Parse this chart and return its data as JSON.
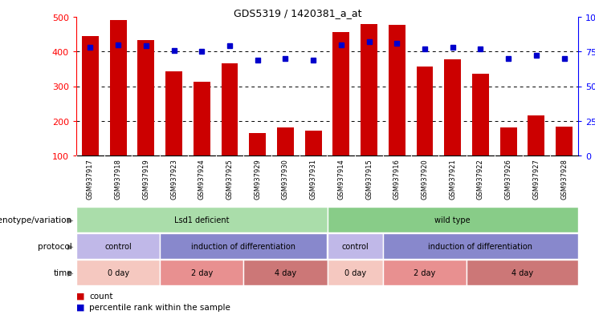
{
  "title": "GDS5319 / 1420381_a_at",
  "samples": [
    "GSM937917",
    "GSM937918",
    "GSM937919",
    "GSM937923",
    "GSM937924",
    "GSM937925",
    "GSM937929",
    "GSM937930",
    "GSM937931",
    "GSM937914",
    "GSM937915",
    "GSM937916",
    "GSM937920",
    "GSM937921",
    "GSM937922",
    "GSM937926",
    "GSM937927",
    "GSM937928"
  ],
  "counts": [
    445,
    490,
    432,
    342,
    313,
    367,
    165,
    182,
    172,
    455,
    480,
    478,
    357,
    378,
    335,
    180,
    215,
    183
  ],
  "percentiles": [
    78,
    80,
    79,
    76,
    75,
    79,
    69,
    70,
    69,
    80,
    82,
    81,
    77,
    78,
    77,
    70,
    72,
    70
  ],
  "ylim_left": [
    100,
    500
  ],
  "ylim_right": [
    0,
    100
  ],
  "yticks_left": [
    100,
    200,
    300,
    400,
    500
  ],
  "ytick_labels_left": [
    "100",
    "200",
    "300",
    "400",
    "500"
  ],
  "yticks_right": [
    0,
    25,
    50,
    75,
    100
  ],
  "ytick_labels_right": [
    "0",
    "25",
    "50",
    "75",
    "100%"
  ],
  "bar_color": "#cc0000",
  "dot_color": "#0000cc",
  "xtick_bg": "#d0d0d0",
  "genotype_groups": [
    {
      "label": "Lsd1 deficient",
      "start": 0,
      "end": 9,
      "color": "#aaddaa"
    },
    {
      "label": "wild type",
      "start": 9,
      "end": 18,
      "color": "#88cc88"
    }
  ],
  "protocol_groups": [
    {
      "label": "control",
      "start": 0,
      "end": 3,
      "color": "#c0b8e8"
    },
    {
      "label": "induction of differentiation",
      "start": 3,
      "end": 9,
      "color": "#8888cc"
    },
    {
      "label": "control",
      "start": 9,
      "end": 11,
      "color": "#c0b8e8"
    },
    {
      "label": "induction of differentiation",
      "start": 11,
      "end": 18,
      "color": "#8888cc"
    }
  ],
  "time_groups": [
    {
      "label": "0 day",
      "start": 0,
      "end": 3,
      "color": "#f5c8c0"
    },
    {
      "label": "2 day",
      "start": 3,
      "end": 6,
      "color": "#e89090"
    },
    {
      "label": "4 day",
      "start": 6,
      "end": 9,
      "color": "#cc7777"
    },
    {
      "label": "0 day",
      "start": 9,
      "end": 11,
      "color": "#f5c8c0"
    },
    {
      "label": "2 day",
      "start": 11,
      "end": 14,
      "color": "#e89090"
    },
    {
      "label": "4 day",
      "start": 14,
      "end": 18,
      "color": "#cc7777"
    }
  ],
  "row_labels": [
    "genotype/variation",
    "protocol",
    "time"
  ],
  "legend_items": [
    {
      "color": "#cc0000",
      "label": "count"
    },
    {
      "color": "#0000cc",
      "label": "percentile rank within the sample"
    }
  ],
  "separator_col": 9,
  "n_samples": 18
}
